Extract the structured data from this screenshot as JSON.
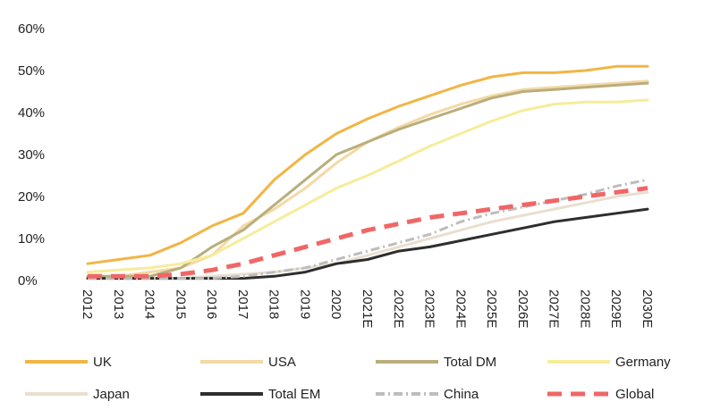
{
  "chart_data": {
    "type": "line",
    "title": "",
    "xlabel": "",
    "ylabel": "",
    "ylim": [
      0,
      60
    ],
    "y_ticks": [
      "0%",
      "10%",
      "20%",
      "30%",
      "40%",
      "50%",
      "60%"
    ],
    "x": [
      "2012",
      "2013",
      "2014",
      "2015",
      "2016",
      "2017",
      "2018",
      "2019",
      "2020",
      "2021E",
      "2022E",
      "2023E",
      "2024E",
      "2025E",
      "2026E",
      "2027E",
      "2028E",
      "2029E",
      "2030E"
    ],
    "grid": false,
    "legend_position": "bottom",
    "series": [
      {
        "name": "UK",
        "color": "#f2b544",
        "dash": "solid",
        "values": [
          4,
          5,
          6,
          9,
          13,
          16,
          24,
          30,
          35,
          38.5,
          41.5,
          44,
          46.5,
          48.5,
          49.5,
          49.5,
          50,
          51,
          51
        ]
      },
      {
        "name": "USA",
        "color": "#f4d9a6",
        "dash": "solid",
        "values": [
          1,
          1,
          2,
          3,
          6,
          13,
          17,
          22,
          28,
          33,
          36.5,
          39.5,
          42,
          44,
          45.5,
          46,
          46.5,
          47,
          47.5
        ]
      },
      {
        "name": "Total DM",
        "color": "#b9ae7c",
        "dash": "solid",
        "values": [
          1,
          1,
          1,
          3,
          8,
          12,
          18,
          24,
          30,
          33,
          36,
          38.5,
          41,
          43.5,
          45,
          45.5,
          46,
          46.5,
          47
        ]
      },
      {
        "name": "Germany",
        "color": "#f6ec9a",
        "dash": "solid",
        "values": [
          2,
          2.5,
          3,
          4,
          6,
          10,
          14,
          18,
          22,
          25,
          28.5,
          32,
          35,
          38,
          40.5,
          42,
          42.5,
          42.5,
          43
        ]
      },
      {
        "name": "Japan",
        "color": "#e9dfcf",
        "dash": "solid",
        "values": [
          0.5,
          0.5,
          0.5,
          0.5,
          1,
          1.5,
          2,
          3,
          4,
          6,
          8,
          10,
          12,
          14,
          15.5,
          17,
          18.5,
          20,
          21
        ]
      },
      {
        "name": "Total EM",
        "color": "#2e2e2e",
        "dash": "solid",
        "values": [
          0.5,
          0.5,
          0.5,
          0.5,
          0.5,
          0.5,
          1,
          2,
          4,
          5,
          7,
          8,
          9.5,
          11,
          12.5,
          14,
          15,
          16,
          17
        ]
      },
      {
        "name": "China",
        "color": "#bdbdbd",
        "dash": "dashdot",
        "values": [
          0.5,
          0.5,
          0.5,
          0.5,
          0.5,
          1,
          2,
          3,
          5,
          7,
          9,
          11,
          14,
          16,
          17.5,
          19,
          20.5,
          22.5,
          24
        ]
      },
      {
        "name": "Global",
        "color": "#f06666",
        "dash": "dash",
        "values": [
          1,
          1,
          1,
          1.5,
          2.5,
          4,
          6,
          8,
          10,
          12,
          13.5,
          15,
          16,
          17,
          18,
          19,
          20,
          21,
          22
        ]
      }
    ]
  }
}
